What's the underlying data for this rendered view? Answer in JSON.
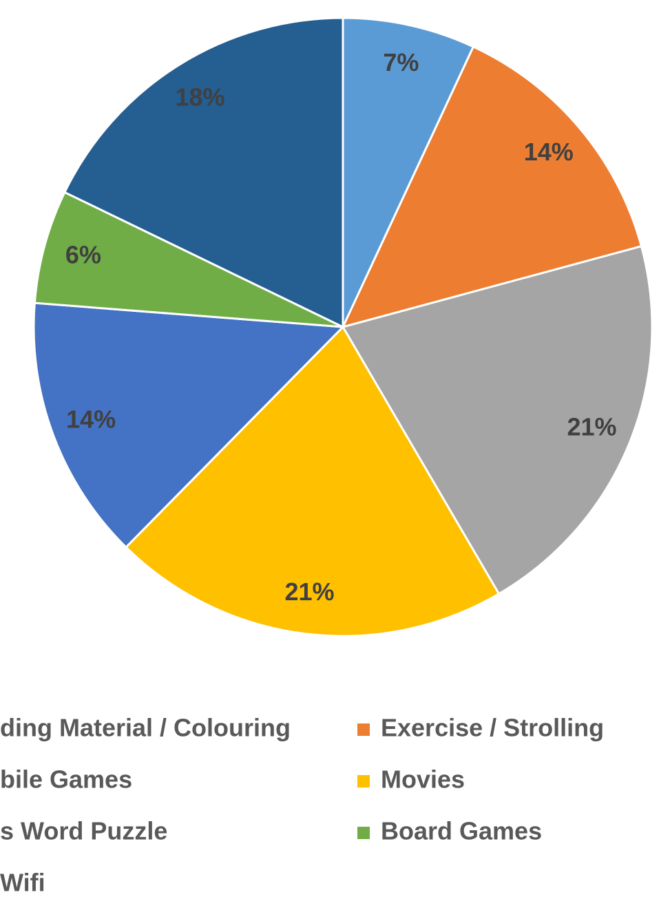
{
  "chart_data": {
    "type": "pie",
    "categories": [
      "ding Material / Colouring",
      "Exercise / Strolling",
      "bile Games",
      "Movies",
      "s Word Puzzle",
      "Board Games",
      "Wifi"
    ],
    "values": [
      7,
      14,
      21,
      21,
      14,
      6,
      18
    ],
    "value_labels": [
      "7%",
      "14%",
      "21%",
      "21%",
      "14%",
      "6%",
      "18%"
    ],
    "colors": [
      "#5b9bd5",
      "#ed7d31",
      "#a5a5a5",
      "#ffc000",
      "#4472c4",
      "#70ad47",
      "#255e91"
    ]
  }
}
